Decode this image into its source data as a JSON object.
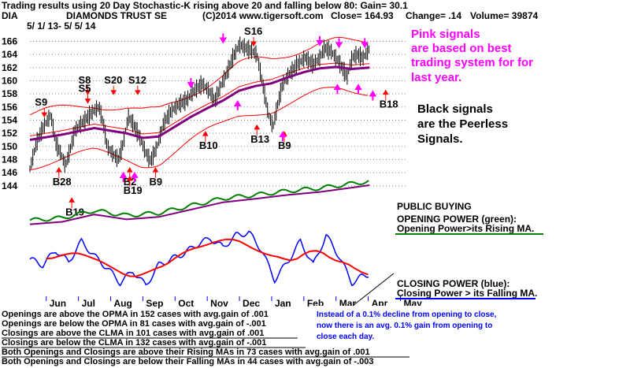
{
  "header": {
    "line1": "Trading results using  20 Day Stochastic-K rising above 20 and falling below 80: Gain= 30.1",
    "symbol": "DIA",
    "name": "DIAMONDS TRUST SE",
    "copyright": "(C)2014 www.tigersoft.com",
    "close": "Close=  164.93",
    "change": "Change= .14",
    "volume": "Volume=  39874",
    "period": "5/ 1/ 13- 5/ 5/ 14"
  },
  "annotations": {
    "pink_note": [
      "Pink signals",
      "are based on best",
      "trading system for for",
      "last year."
    ],
    "black_note": [
      "Black signals",
      "are the Peerless",
      "Signals."
    ],
    "public_buying": "PUBLIC BUYING",
    "opening_power": "OPENING POWER (green):",
    "opening_power_note": "Opening Power>its Rising MA.",
    "closing_power": "CLOSING POWER (blue):",
    "closing_power_note": "Closing Power > its Falling MA.",
    "blue_note": [
      "Instead of a 0.1% decline from opening to close,",
      "now there is an avg. 0.1% gain from opening to",
      "close each day."
    ]
  },
  "stats": [
    "Openings are above the OPMA in  152 cases with avg.gain of  .001",
    "Openings are below the OPMA in  81 cases with avg.gain of -.001",
    "Closings are above the CLMA in  101 cases with avg.gain of  .001",
    "Closings are below the CLMA in  132 cases with avg.gain of -.001",
    "Both Openings and Closings are above their Rising MAs in  73 cases with avg.gain of  .001",
    "Both Openings and Closings are below their Falling MAs in  44 cases with avg.gain of -.003"
  ],
  "colors": {
    "price": "#000000",
    "band": "#ff0000",
    "ma": "#800080",
    "opening_power": "#008000",
    "closing_power": "#0000ff",
    "pink": "#ff00ff",
    "grid": "#808080",
    "note": "#0000ff"
  },
  "chart_data": {
    "type": "line",
    "y_axis": {
      "ticks": [
        144,
        146,
        148,
        150,
        152,
        154,
        156,
        158,
        160,
        162,
        164,
        166
      ],
      "range": [
        143.5,
        167.5
      ]
    },
    "x_axis": {
      "months": [
        "Jun",
        "Jul",
        "Aug",
        "Sep",
        "Oct",
        "Nov",
        "Dec",
        "Jan",
        "Feb",
        "Mar",
        "Apr",
        "May"
      ]
    },
    "grid": "dotted horizontal",
    "price_points": [
      {
        "x": 0.0,
        "y": 146.6
      },
      {
        "x": 0.2,
        "y": 150.5
      },
      {
        "x": 0.4,
        "y": 152.8
      },
      {
        "x": 0.65,
        "y": 154.8
      },
      {
        "x": 0.8,
        "y": 150.5
      },
      {
        "x": 1.0,
        "y": 148.5
      },
      {
        "x": 1.1,
        "y": 147.0
      },
      {
        "x": 1.25,
        "y": 149.5
      },
      {
        "x": 1.4,
        "y": 152.5
      },
      {
        "x": 1.6,
        "y": 153.5
      },
      {
        "x": 1.8,
        "y": 154.5
      },
      {
        "x": 2.0,
        "y": 155.5
      },
      {
        "x": 2.15,
        "y": 156.0
      },
      {
        "x": 2.3,
        "y": 153.0
      },
      {
        "x": 2.4,
        "y": 150.0
      },
      {
        "x": 2.55,
        "y": 149.0
      },
      {
        "x": 2.75,
        "y": 148.0
      },
      {
        "x": 2.9,
        "y": 150.5
      },
      {
        "x": 3.05,
        "y": 154.5
      },
      {
        "x": 3.2,
        "y": 153.5
      },
      {
        "x": 3.4,
        "y": 151.5
      },
      {
        "x": 3.6,
        "y": 149.0
      },
      {
        "x": 3.75,
        "y": 147.8
      },
      {
        "x": 3.95,
        "y": 150.0
      },
      {
        "x": 4.15,
        "y": 153.5
      },
      {
        "x": 4.4,
        "y": 155.5
      },
      {
        "x": 4.65,
        "y": 156.5
      },
      {
        "x": 4.85,
        "y": 157.0
      },
      {
        "x": 5.1,
        "y": 158.5
      },
      {
        "x": 5.35,
        "y": 159.5
      },
      {
        "x": 5.55,
        "y": 158.5
      },
      {
        "x": 5.75,
        "y": 157.0
      },
      {
        "x": 5.95,
        "y": 159.5
      },
      {
        "x": 6.1,
        "y": 161.0
      },
      {
        "x": 6.3,
        "y": 163.5
      },
      {
        "x": 6.5,
        "y": 165.5
      },
      {
        "x": 6.7,
        "y": 165.0
      },
      {
        "x": 6.9,
        "y": 164.5
      },
      {
        "x": 7.05,
        "y": 164.0
      },
      {
        "x": 7.25,
        "y": 159.0
      },
      {
        "x": 7.4,
        "y": 155.0
      },
      {
        "x": 7.55,
        "y": 153.0
      },
      {
        "x": 7.7,
        "y": 156.5
      },
      {
        "x": 7.85,
        "y": 159.5
      },
      {
        "x": 8.05,
        "y": 161.0
      },
      {
        "x": 8.3,
        "y": 162.5
      },
      {
        "x": 8.55,
        "y": 163.5
      },
      {
        "x": 8.8,
        "y": 162.5
      },
      {
        "x": 9.0,
        "y": 163.5
      },
      {
        "x": 9.15,
        "y": 165.0
      },
      {
        "x": 9.35,
        "y": 164.5
      },
      {
        "x": 9.5,
        "y": 163.5
      },
      {
        "x": 9.7,
        "y": 162.0
      },
      {
        "x": 9.85,
        "y": 160.5
      },
      {
        "x": 10.0,
        "y": 163.5
      },
      {
        "x": 10.15,
        "y": 164.0
      },
      {
        "x": 10.35,
        "y": 163.5
      },
      {
        "x": 10.55,
        "y": 164.9
      }
    ],
    "ma_points": [
      {
        "x": 0.0,
        "y": 151.0
      },
      {
        "x": 1.0,
        "y": 151.8
      },
      {
        "x": 2.0,
        "y": 152.8
      },
      {
        "x": 3.0,
        "y": 152.0
      },
      {
        "x": 3.5,
        "y": 151.3
      },
      {
        "x": 4.0,
        "y": 151.5
      },
      {
        "x": 4.5,
        "y": 153.0
      },
      {
        "x": 5.0,
        "y": 154.5
      },
      {
        "x": 5.5,
        "y": 155.8
      },
      {
        "x": 6.0,
        "y": 157.0
      },
      {
        "x": 6.5,
        "y": 158.5
      },
      {
        "x": 7.0,
        "y": 159.2
      },
      {
        "x": 7.5,
        "y": 159.6
      },
      {
        "x": 8.0,
        "y": 160.5
      },
      {
        "x": 8.5,
        "y": 161.3
      },
      {
        "x": 9.0,
        "y": 161.9
      },
      {
        "x": 9.5,
        "y": 162.1
      },
      {
        "x": 10.0,
        "y": 161.8
      },
      {
        "x": 10.55,
        "y": 162.0
      }
    ],
    "signals": [
      {
        "label": "S9",
        "x": 0.35,
        "y": 156.2,
        "kind": "sell"
      },
      {
        "label": "S8",
        "x": 1.7,
        "y": 159.6,
        "kind": "sell"
      },
      {
        "label": "S5",
        "x": 1.7,
        "y": 158.3,
        "kind": "sell"
      },
      {
        "label": "S20",
        "x": 2.5,
        "y": 159.6,
        "kind": "sell"
      },
      {
        "label": "S12",
        "x": 3.25,
        "y": 159.6,
        "kind": "sell"
      },
      {
        "label": "S16",
        "x": 6.85,
        "y": 167.0,
        "kind": "sell"
      },
      {
        "label": "B28",
        "x": 0.9,
        "y": 144.1,
        "kind": "buy"
      },
      {
        "label": "B19",
        "x": 1.3,
        "y": 139.5,
        "kind": "buy"
      },
      {
        "label": "B2",
        "x": 3.1,
        "y": 144.1,
        "kind": "buy"
      },
      {
        "label": "B19",
        "x": 3.1,
        "y": 142.8,
        "kind": "buy"
      },
      {
        "label": "B9",
        "x": 3.9,
        "y": 144.1,
        "kind": "buy"
      },
      {
        "label": "B10",
        "x": 5.45,
        "y": 149.6,
        "kind": "buy"
      },
      {
        "label": "B13",
        "x": 7.05,
        "y": 150.6,
        "kind": "buy"
      },
      {
        "label": "B9",
        "x": 7.9,
        "y": 149.6,
        "kind": "buy"
      },
      {
        "label": "B18",
        "x": 11.05,
        "y": 155.9,
        "kind": "buy"
      }
    ],
    "opening_power_points": [
      {
        "x": 0.0,
        "y": 0.2
      },
      {
        "x": 1.0,
        "y": 0.25
      },
      {
        "x": 2.0,
        "y": 0.4
      },
      {
        "x": 3.0,
        "y": 0.3
      },
      {
        "x": 4.0,
        "y": 0.35
      },
      {
        "x": 5.0,
        "y": 0.5
      },
      {
        "x": 6.0,
        "y": 0.65
      },
      {
        "x": 7.0,
        "y": 0.72
      },
      {
        "x": 8.0,
        "y": 0.8
      },
      {
        "x": 9.0,
        "y": 0.86
      },
      {
        "x": 10.0,
        "y": 0.95
      },
      {
        "x": 10.55,
        "y": 1.0
      }
    ],
    "closing_power_points": [
      {
        "x": 0.0,
        "y": 0.55
      },
      {
        "x": 0.4,
        "y": 0.45
      },
      {
        "x": 0.8,
        "y": 0.7
      },
      {
        "x": 1.2,
        "y": 0.5
      },
      {
        "x": 1.6,
        "y": 0.85
      },
      {
        "x": 2.0,
        "y": 0.6
      },
      {
        "x": 2.4,
        "y": 0.4
      },
      {
        "x": 2.8,
        "y": 0.15
      },
      {
        "x": 3.2,
        "y": 0.35
      },
      {
        "x": 3.6,
        "y": 0.1
      },
      {
        "x": 4.0,
        "y": 0.45
      },
      {
        "x": 4.4,
        "y": 0.55
      },
      {
        "x": 4.8,
        "y": 0.65
      },
      {
        "x": 5.2,
        "y": 0.8
      },
      {
        "x": 5.6,
        "y": 0.9
      },
      {
        "x": 6.0,
        "y": 0.75
      },
      {
        "x": 6.4,
        "y": 0.95
      },
      {
        "x": 6.8,
        "y": 1.0
      },
      {
        "x": 7.2,
        "y": 0.7
      },
      {
        "x": 7.6,
        "y": 0.2
      },
      {
        "x": 8.0,
        "y": 0.5
      },
      {
        "x": 8.4,
        "y": 0.85
      },
      {
        "x": 8.8,
        "y": 0.45
      },
      {
        "x": 9.2,
        "y": 0.95
      },
      {
        "x": 9.6,
        "y": 0.6
      },
      {
        "x": 10.0,
        "y": 0.15
      },
      {
        "x": 10.3,
        "y": 0.25
      },
      {
        "x": 10.55,
        "y": 0.3
      }
    ]
  }
}
